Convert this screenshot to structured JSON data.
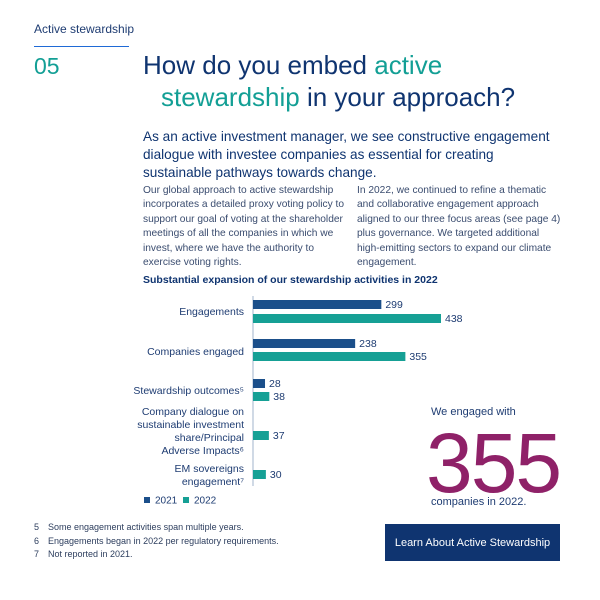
{
  "header": {
    "section_label": "Active stewardship",
    "section_number": "05",
    "title_part1": "How do you embed ",
    "title_part2_accent": "active",
    "title_part3_accent": "stewardship",
    "title_part4": " in your approach?"
  },
  "intro": "As an active investment manager, we see constructive engagement dialogue with investee companies as essential for creating sustainable pathways towards change.",
  "body": {
    "left_column": "Our global approach to active stewardship incorporates a detailed proxy voting policy to support our goal of voting at the shareholder meetings of all the companies in which we invest, where we have the authority to exercise voting rights.",
    "right_column": "In 2022, we continued to refine a thematic and collaborative engagement approach aligned to our three focus areas (see page 4) plus governance. We targeted additional high-emitting sectors to expand our climate engagement."
  },
  "colors": {
    "navy": "#0f3470",
    "series_2021": "#1b4f8a",
    "series_2022": "#16a095",
    "callout": "#8f2168"
  },
  "chart_data": {
    "type": "bar",
    "orientation": "horizontal",
    "title": "Substantial expansion of our stewardship activities in 2022",
    "categories": [
      [
        "Engagements"
      ],
      [
        "Companies engaged"
      ],
      [
        "Stewardship outcomes⁵"
      ],
      [
        "Company dialogue on",
        "sustainable investment",
        "share/Principal",
        "Adverse Impacts⁶"
      ],
      [
        "EM sovereigns",
        "engagement⁷"
      ]
    ],
    "series": [
      {
        "name": "2021",
        "values": [
          299,
          238,
          28,
          null,
          null
        ]
      },
      {
        "name": "2022",
        "values": [
          438,
          355,
          38,
          37,
          30
        ]
      }
    ],
    "xlim": [
      0,
      460
    ],
    "legend": "bottom-left"
  },
  "callout": {
    "top_text": "We engaged with",
    "number": "355",
    "bottom_text": "companies in 2022."
  },
  "footnotes": [
    {
      "num": "5",
      "text": "Some engagement activities span multiple years."
    },
    {
      "num": "6",
      "text": "Engagements began in 2022 per regulatory requirements."
    },
    {
      "num": "7",
      "text": "Not reported in 2021."
    }
  ],
  "cta": {
    "label": "Learn About Active Stewardship"
  }
}
